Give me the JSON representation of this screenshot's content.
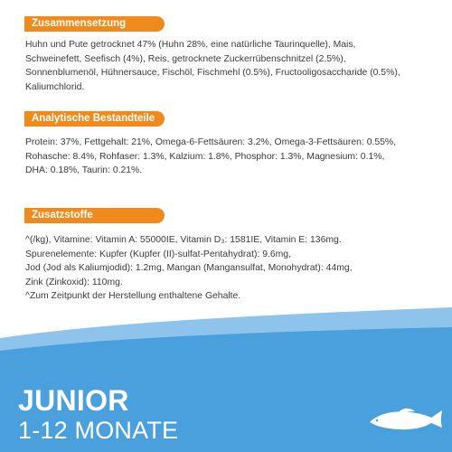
{
  "sections": [
    {
      "heading": "Zusammensetzung",
      "lines": [
        "Huhn und Pute getrocknet 47% (Huhn 28%, eine natürliche Taurinquelle), Mais,",
        "Schweinefett, Seefisch (4%), Reis, getrocknete Zuckerrübenschnitzel (2.5%),",
        "Sonnenblumenöl, Hühnersauce, Fischöl, Fischmehl (0.5%), Fructooligosaccharide (0.5%),",
        "Kaliumchlorid."
      ]
    },
    {
      "heading": "Analytische Bestandteile",
      "lines": [
        "Protein: 37%, Fettgehalt: 21%, Omega-6-Fettsäuren: 3.2%, Omega-3-Fettsäuren: 0.55%,",
        "Rohasche: 8.4%, Rohfaser: 1.3%, Kalzium: 1.8%, Phosphor: 1.3%, Magnesium: 0.1%,",
        "DHA: 0.18%, Taurin: 0.21%."
      ]
    },
    {
      "heading": "Zusatzstoffe",
      "lines": [
        "^(/kg), Vitamine: Vitamin A: 55000IE, Vitamin D₃: 1581IE, Vitamin E: 136mg.",
        "Spurenelemente: Kupfer (Kupfer (II)-sulfat-Pentahydrat): 9.6mg,",
        "Jod (Jod als Kaliumjodid): 1.2mg, Mangan (Mangansulfat, Monohydrat): 44mg,",
        "Zink (Zinkoxid): 110mg.",
        "^Zum Zeitpunkt der Herstellung enthaltene Gehalte."
      ]
    }
  ],
  "footer": {
    "title": "JUNIOR",
    "subtitle": "1-12 MONATE"
  },
  "colors": {
    "accent": "#f08a1c",
    "wave_light": "#8ec4ec",
    "wave_dark": "#4a9fdd",
    "text": "#3a3a3a"
  },
  "icons": {
    "fish": "fish-icon"
  }
}
